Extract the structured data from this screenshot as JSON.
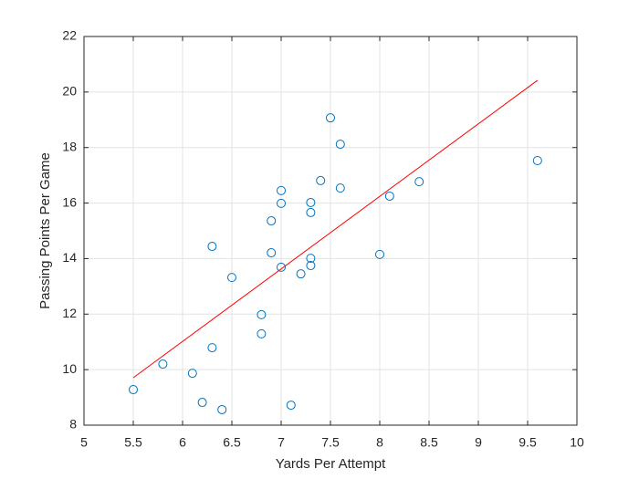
{
  "chart_data": {
    "type": "scatter",
    "x_label": "Yards Per Attempt",
    "y_label": "Passing Points Per Game",
    "xlim": [
      5,
      10
    ],
    "xticks": [
      5,
      5.5,
      6,
      6.5,
      7,
      7.5,
      8,
      8.5,
      9,
      9.5,
      10
    ],
    "ylim": [
      8,
      22
    ],
    "yticks": [
      8,
      10,
      12,
      14,
      16,
      18,
      20,
      22
    ],
    "grid": true,
    "series": [
      {
        "type": "scatter",
        "color": "#0072bd",
        "x": [
          5.5,
          5.8,
          6.1,
          6.2,
          6.3,
          6.3,
          6.4,
          6.5,
          6.8,
          6.8,
          6.9,
          6.9,
          7.0,
          7.0,
          7.0,
          7.1,
          7.2,
          7.3,
          7.3,
          7.3,
          7.3,
          7.4,
          7.5,
          7.6,
          7.6,
          8.0,
          8.1,
          8.4,
          9.6
        ],
        "values": [
          9.28,
          10.2,
          9.87,
          8.82,
          10.79,
          14.44,
          8.56,
          13.32,
          11.98,
          11.29,
          15.36,
          14.21,
          16.45,
          15.99,
          13.69,
          8.72,
          13.45,
          16.02,
          15.66,
          14.01,
          13.75,
          16.81,
          19.07,
          18.12,
          16.54,
          14.15,
          16.25,
          16.77,
          17.53
        ]
      },
      {
        "type": "line",
        "color": "#ff0000",
        "x": [
          5.5,
          9.6
        ],
        "values": [
          9.71,
          20.42
        ]
      }
    ]
  }
}
